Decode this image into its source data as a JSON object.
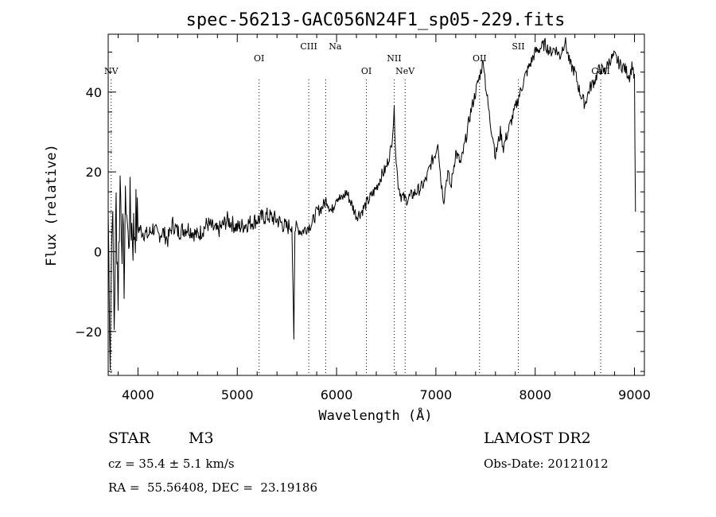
{
  "chart_data": {
    "type": "line",
    "title": "spec-56213-GAC056N24F1_sp05-229.fits",
    "xlabel": "Wavelength (Å)",
    "ylabel": "Flux (relative)",
    "xlim": [
      3700,
      9100
    ],
    "ylim": [
      -31,
      54.5
    ],
    "xticks": [
      4000,
      5000,
      6000,
      7000,
      8000,
      9000
    ],
    "yticks": [
      -20,
      0,
      20,
      40
    ],
    "grid": false,
    "lines": [
      {
        "name": "NV",
        "wavelength": 3730
      },
      {
        "name": "OI",
        "wavelength": 5220
      },
      {
        "name": "CIII",
        "wavelength": 5720
      },
      {
        "name": "Na",
        "wavelength": 5890
      },
      {
        "name": "OI",
        "wavelength": 6300
      },
      {
        "name": "NII",
        "wavelength": 6580
      },
      {
        "name": "NeV",
        "wavelength": 6690
      },
      {
        "name": "OII",
        "wavelength": 7440
      },
      {
        "name": "SII",
        "wavelength": 7830
      },
      {
        "name": "CaII",
        "wavelength": 8660
      }
    ],
    "spectrum": {
      "x": [
        3700,
        3720,
        3740,
        3760,
        3780,
        3800,
        3820,
        3840,
        3860,
        3880,
        3900,
        3920,
        3950,
        3980,
        4000,
        4050,
        4100,
        4150,
        4200,
        4250,
        4300,
        4350,
        4400,
        4500,
        4600,
        4700,
        4800,
        4900,
        5000,
        5100,
        5200,
        5300,
        5400,
        5500,
        5550,
        5570,
        5580,
        5600,
        5650,
        5700,
        5750,
        5800,
        5850,
        5900,
        5950,
        6000,
        6050,
        6100,
        6150,
        6200,
        6250,
        6300,
        6350,
        6400,
        6450,
        6500,
        6550,
        6580,
        6600,
        6620,
        6650,
        6700,
        6750,
        6800,
        6850,
        6900,
        6950,
        7000,
        7020,
        7050,
        7080,
        7100,
        7120,
        7150,
        7200,
        7250,
        7300,
        7350,
        7400,
        7450,
        7480,
        7500,
        7520,
        7550,
        7580,
        7600,
        7650,
        7680,
        7700,
        7750,
        7800,
        7850,
        7900,
        7950,
        8000,
        8050,
        8100,
        8150,
        8200,
        8250,
        8300,
        8350,
        8400,
        8450,
        8500,
        8550,
        8600,
        8650,
        8700,
        8750,
        8800,
        8850,
        8900,
        8950,
        8980,
        9000,
        9010
      ],
      "y": [
        10,
        -25,
        14,
        -18,
        12,
        -10,
        18,
        5,
        -5,
        15,
        2,
        10,
        4,
        8,
        6,
        5,
        4,
        6,
        4,
        5,
        3,
        7,
        5,
        6,
        4,
        7,
        5,
        8,
        6,
        7,
        8,
        9,
        8,
        6,
        7,
        -22,
        5,
        6,
        5,
        6,
        7,
        10,
        11,
        13,
        10,
        14,
        13,
        15,
        12,
        9,
        10,
        12,
        14,
        16,
        19,
        21,
        26,
        35,
        23,
        17,
        14,
        13,
        14,
        15,
        16,
        18,
        22,
        25,
        28,
        18,
        13,
        17,
        20,
        16,
        25,
        22,
        28,
        35,
        40,
        45,
        48,
        42,
        38,
        32,
        28,
        24,
        30,
        26,
        28,
        32,
        36,
        40,
        44,
        47,
        50,
        51,
        52,
        50,
        51,
        49,
        53,
        47,
        45,
        40,
        37,
        41,
        43,
        46,
        45,
        48,
        49,
        47,
        46,
        44,
        47,
        43,
        10
      ]
    }
  },
  "footer": {
    "object_type": "STAR",
    "subclass": "M3",
    "cz": "cz = 35.4 ± 5.1 km/s",
    "coords": "RA =  55.56408, DEC =  23.19186",
    "survey": "LAMOST DR2",
    "obs_date": "Obs-Date: 20121012"
  }
}
